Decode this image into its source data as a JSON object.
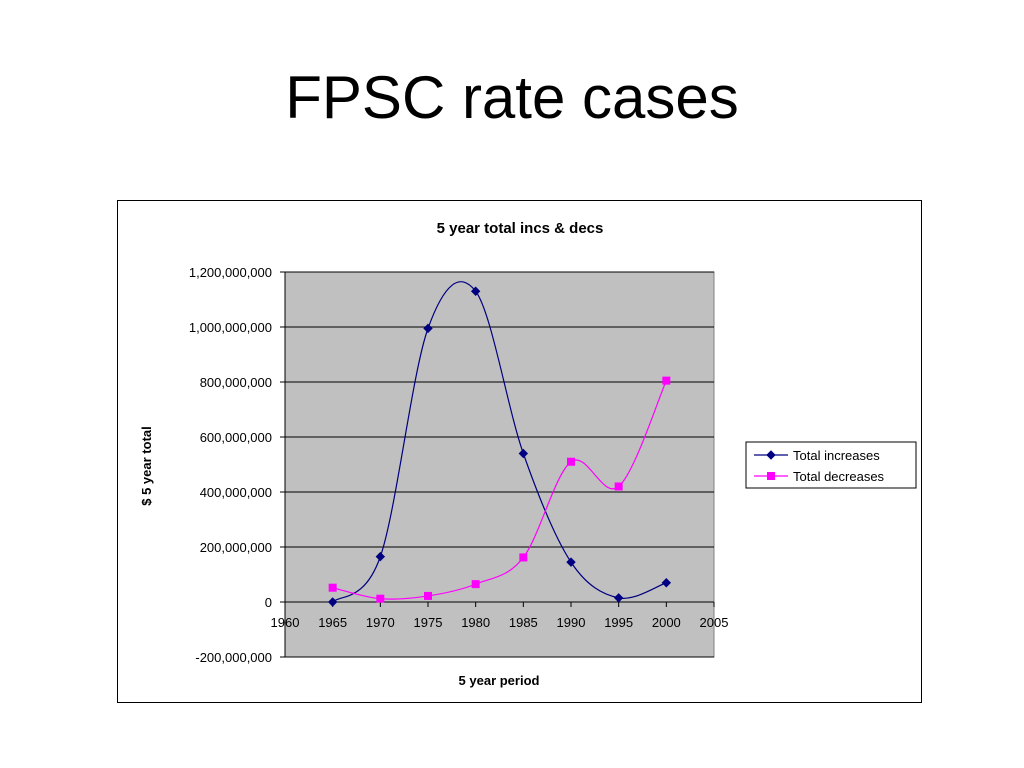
{
  "slide": {
    "title": "FPSC rate cases"
  },
  "chart_data": {
    "type": "line",
    "title": "5 year total incs & decs",
    "xlabel": "5 year period",
    "ylabel": "$ 5 year total",
    "xlim": [
      1960,
      2005
    ],
    "ylim": [
      -200000000,
      1200000000
    ],
    "x_ticks": [
      1960,
      1965,
      1970,
      1975,
      1980,
      1985,
      1990,
      1995,
      2000,
      2005
    ],
    "x_tick_labels": [
      "1960",
      "1965",
      "1970",
      "1975",
      "1980",
      "1985",
      "1990",
      "1995",
      "2000",
      "2005"
    ],
    "y_ticks": [
      -200000000,
      0,
      200000000,
      400000000,
      600000000,
      800000000,
      1000000000,
      1200000000
    ],
    "y_tick_labels": [
      "-200,000,000",
      "0",
      "200,000,000",
      "400,000,000",
      "600,000,000",
      "800,000,000",
      "1,000,000,000",
      "1,200,000,000"
    ],
    "grid": "horizontal",
    "smoothed": true,
    "plot_background": "#c0c0c0",
    "legend_position": "right",
    "series": [
      {
        "name": "Total increases",
        "color": "#000080",
        "marker": "diamond",
        "x": [
          1965,
          1970,
          1975,
          1980,
          1985,
          1990,
          1995,
          2000
        ],
        "y": [
          0,
          165000000,
          995000000,
          1130000000,
          540000000,
          145000000,
          15000000,
          70000000
        ]
      },
      {
        "name": "Total decreases",
        "color": "#ff00ff",
        "marker": "square",
        "x": [
          1965,
          1970,
          1975,
          1980,
          1985,
          1990,
          1995,
          2000
        ],
        "y": [
          52000000,
          12000000,
          22000000,
          65000000,
          162000000,
          510000000,
          420000000,
          805000000
        ]
      }
    ]
  }
}
